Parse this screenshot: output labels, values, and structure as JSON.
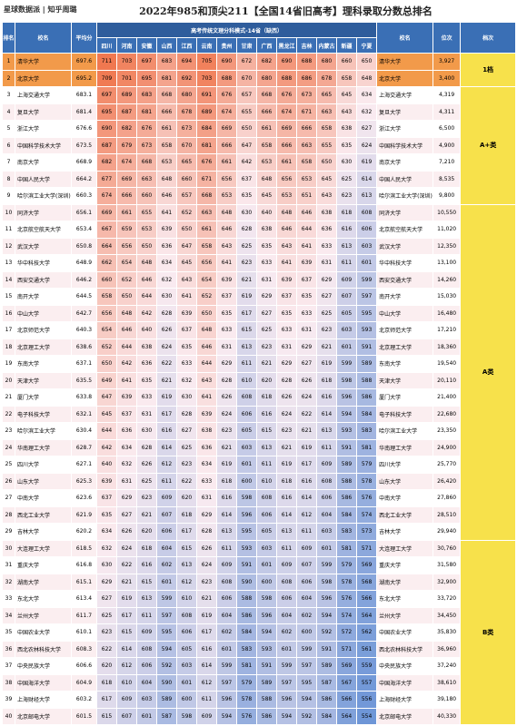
{
  "header": {
    "logo": "星球数据派 | 知乎周璐",
    "title": "2022年985和顶尖211【全国14省旧高考】理科录取分数总排名"
  },
  "table": {
    "group_title": "高考传统文理分科模式-14省（缺西）",
    "columns": {
      "rank": "排名",
      "name": "校名",
      "score": "平均分",
      "name2": "校名",
      "position": "位次",
      "tier": "档次"
    },
    "provinces": [
      "四川",
      "河南",
      "安徽",
      "山西",
      "江西",
      "云南",
      "贵州",
      "甘肃",
      "广西",
      "黑龙江",
      "吉林",
      "内蒙古",
      "新疆",
      "宁夏"
    ],
    "rows": [
      {
        "rank": 1,
        "name": "清华大学",
        "score": 697.6,
        "scores": [
          711,
          703,
          697,
          683,
          694,
          705,
          690,
          672,
          682,
          690,
          688,
          680,
          660,
          650
        ],
        "position": "3,927",
        "tier": "1档"
      },
      {
        "rank": 2,
        "name": "北京大学",
        "score": 695.2,
        "scores": [
          709,
          701,
          695,
          681,
          692,
          703,
          688,
          670,
          680,
          688,
          686,
          678,
          658,
          648
        ],
        "position": "3,400"
      },
      {
        "rank": 3,
        "name": "上海交通大学",
        "score": 683.1,
        "scores": [
          697,
          689,
          683,
          668,
          680,
          691,
          676,
          657,
          668,
          676,
          673,
          665,
          645,
          634
        ],
        "position": "4,319",
        "tier": "A+类"
      },
      {
        "rank": 4,
        "name": "复旦大学",
        "score": 681.4,
        "scores": [
          695,
          687,
          681,
          666,
          678,
          689,
          674,
          655,
          666,
          674,
          671,
          663,
          643,
          632
        ],
        "position": "4,311"
      },
      {
        "rank": 5,
        "name": "浙江大学",
        "score": 676.6,
        "scores": [
          690,
          682,
          676,
          661,
          673,
          684,
          669,
          650,
          661,
          669,
          666,
          658,
          638,
          627
        ],
        "position": "6,500"
      },
      {
        "rank": 6,
        "name": "中国科学技术大学",
        "score": 673.5,
        "scores": [
          687,
          679,
          673,
          658,
          670,
          681,
          666,
          647,
          658,
          666,
          663,
          655,
          635,
          624
        ],
        "position": "4,900"
      },
      {
        "rank": 7,
        "name": "南京大学",
        "score": 668.9,
        "scores": [
          682,
          674,
          668,
          653,
          665,
          676,
          661,
          642,
          653,
          661,
          658,
          650,
          630,
          619
        ],
        "position": "7,210"
      },
      {
        "rank": 8,
        "name": "中国人民大学",
        "score": 664.2,
        "scores": [
          677,
          669,
          663,
          648,
          660,
          671,
          656,
          637,
          648,
          656,
          653,
          645,
          625,
          614
        ],
        "position": "8,535"
      },
      {
        "rank": 9,
        "name": "哈尔滨工业大学(深圳)",
        "score": 660.3,
        "scores": [
          674,
          666,
          660,
          646,
          657,
          668,
          653,
          635,
          645,
          653,
          651,
          643,
          623,
          613
        ],
        "position": "9,800"
      },
      {
        "rank": 10,
        "name": "同济大学",
        "score": 656.1,
        "scores": [
          669,
          661,
          655,
          641,
          652,
          663,
          648,
          630,
          640,
          648,
          646,
          638,
          618,
          608
        ],
        "position": "10,550",
        "tier": "A类"
      },
      {
        "rank": 11,
        "name": "北京航空航天大学",
        "score": 653.4,
        "scores": [
          667,
          659,
          653,
          639,
          650,
          661,
          646,
          628,
          638,
          646,
          644,
          636,
          616,
          606
        ],
        "position": "11,020"
      },
      {
        "rank": 12,
        "name": "武汉大学",
        "score": 650.8,
        "scores": [
          664,
          656,
          650,
          636,
          647,
          658,
          643,
          625,
          635,
          643,
          641,
          633,
          613,
          603
        ],
        "position": "12,350"
      },
      {
        "rank": 13,
        "name": "华中科技大学",
        "score": 648.9,
        "scores": [
          662,
          654,
          648,
          634,
          645,
          656,
          641,
          623,
          633,
          641,
          639,
          631,
          611,
          601
        ],
        "position": "13,100"
      },
      {
        "rank": 14,
        "name": "西安交通大学",
        "score": 646.2,
        "scores": [
          660,
          652,
          646,
          632,
          643,
          654,
          639,
          621,
          631,
          639,
          637,
          629,
          609,
          599
        ],
        "position": "14,260"
      },
      {
        "rank": 15,
        "name": "南开大学",
        "score": 644.5,
        "scores": [
          658,
          650,
          644,
          630,
          641,
          652,
          637,
          619,
          629,
          637,
          635,
          627,
          607,
          597
        ],
        "position": "15,030"
      },
      {
        "rank": 16,
        "name": "中山大学",
        "score": 642.7,
        "scores": [
          656,
          648,
          642,
          628,
          639,
          650,
          635,
          617,
          627,
          635,
          633,
          625,
          605,
          595
        ],
        "position": "16,480"
      },
      {
        "rank": 17,
        "name": "北京师范大学",
        "score": 640.3,
        "scores": [
          654,
          646,
          640,
          626,
          637,
          648,
          633,
          615,
          625,
          633,
          631,
          623,
          603,
          593
        ],
        "position": "17,210"
      },
      {
        "rank": 18,
        "name": "北京理工大学",
        "score": 638.6,
        "scores": [
          652,
          644,
          638,
          624,
          635,
          646,
          631,
          613,
          623,
          631,
          629,
          621,
          601,
          591
        ],
        "position": "18,360"
      },
      {
        "rank": 19,
        "name": "东南大学",
        "score": 637.1,
        "scores": [
          650,
          642,
          636,
          622,
          633,
          644,
          629,
          611,
          621,
          629,
          627,
          619,
          599,
          589
        ],
        "position": "19,540"
      },
      {
        "rank": 20,
        "name": "天津大学",
        "score": 635.5,
        "scores": [
          649,
          641,
          635,
          621,
          632,
          643,
          628,
          610,
          620,
          628,
          626,
          618,
          598,
          588
        ],
        "position": "20,110"
      },
      {
        "rank": 21,
        "name": "厦门大学",
        "score": 633.8,
        "scores": [
          647,
          639,
          633,
          619,
          630,
          641,
          626,
          608,
          618,
          626,
          624,
          616,
          596,
          586
        ],
        "position": "21,400"
      },
      {
        "rank": 22,
        "name": "电子科技大学",
        "score": 632.1,
        "scores": [
          645,
          637,
          631,
          617,
          628,
          639,
          624,
          606,
          616,
          624,
          622,
          614,
          594,
          584
        ],
        "position": "22,680"
      },
      {
        "rank": 23,
        "name": "哈尔滨工业大学",
        "score": 630.4,
        "scores": [
          644,
          636,
          630,
          616,
          627,
          638,
          623,
          605,
          615,
          623,
          621,
          613,
          593,
          583
        ],
        "position": "23,350"
      },
      {
        "rank": 24,
        "name": "华南理工大学",
        "score": 628.7,
        "scores": [
          642,
          634,
          628,
          614,
          625,
          636,
          621,
          603,
          613,
          621,
          619,
          611,
          591,
          581
        ],
        "position": "24,900"
      },
      {
        "rank": 25,
        "name": "四川大学",
        "score": 627.1,
        "scores": [
          640,
          632,
          626,
          612,
          623,
          634,
          619,
          601,
          611,
          619,
          617,
          609,
          589,
          579
        ],
        "position": "25,770"
      },
      {
        "rank": 26,
        "name": "山东大学",
        "score": 625.3,
        "scores": [
          639,
          631,
          625,
          611,
          622,
          633,
          618,
          600,
          610,
          618,
          616,
          608,
          588,
          578
        ],
        "position": "26,420"
      },
      {
        "rank": 27,
        "name": "中南大学",
        "score": 623.6,
        "scores": [
          637,
          629,
          623,
          609,
          620,
          631,
          616,
          598,
          608,
          616,
          614,
          606,
          586,
          576
        ],
        "position": "27,860"
      },
      {
        "rank": 28,
        "name": "西北工业大学",
        "score": 621.9,
        "scores": [
          635,
          627,
          621,
          607,
          618,
          629,
          614,
          596,
          606,
          614,
          612,
          604,
          584,
          574
        ],
        "position": "28,510"
      },
      {
        "rank": 29,
        "name": "吉林大学",
        "score": 620.2,
        "scores": [
          634,
          626,
          620,
          606,
          617,
          628,
          613,
          595,
          605,
          613,
          611,
          603,
          583,
          573
        ],
        "position": "29,940"
      },
      {
        "rank": 30,
        "name": "大连理工大学",
        "score": 618.5,
        "scores": [
          632,
          624,
          618,
          604,
          615,
          626,
          611,
          593,
          603,
          611,
          609,
          601,
          581,
          571
        ],
        "position": "30,760",
        "tier": "B类"
      },
      {
        "rank": 31,
        "name": "重庆大学",
        "score": 616.8,
        "scores": [
          630,
          622,
          616,
          602,
          613,
          624,
          609,
          591,
          601,
          609,
          607,
          599,
          579,
          569
        ],
        "position": "31,580"
      },
      {
        "rank": 32,
        "name": "湖南大学",
        "score": 615.1,
        "scores": [
          629,
          621,
          615,
          601,
          612,
          623,
          608,
          590,
          600,
          608,
          606,
          598,
          578,
          568
        ],
        "position": "32,900"
      },
      {
        "rank": 33,
        "name": "东北大学",
        "score": 613.4,
        "scores": [
          627,
          619,
          613,
          599,
          610,
          621,
          606,
          588,
          598,
          606,
          604,
          596,
          576,
          566
        ],
        "position": "33,720"
      },
      {
        "rank": 34,
        "name": "兰州大学",
        "score": 611.7,
        "scores": [
          625,
          617,
          611,
          597,
          608,
          619,
          604,
          586,
          596,
          604,
          602,
          594,
          574,
          564
        ],
        "position": "34,450"
      },
      {
        "rank": 35,
        "name": "中国农业大学",
        "score": 610.1,
        "scores": [
          623,
          615,
          609,
          595,
          606,
          617,
          602,
          584,
          594,
          602,
          600,
          592,
          572,
          562
        ],
        "position": "35,830"
      },
      {
        "rank": 36,
        "name": "西北农林科技大学",
        "score": 608.3,
        "scores": [
          622,
          614,
          608,
          594,
          605,
          616,
          601,
          583,
          593,
          601,
          599,
          591,
          571,
          561
        ],
        "position": "36,960"
      },
      {
        "rank": 37,
        "name": "中央民族大学",
        "score": 606.6,
        "scores": [
          620,
          612,
          606,
          592,
          603,
          614,
          599,
          581,
          591,
          599,
          597,
          589,
          569,
          559
        ],
        "position": "37,240"
      },
      {
        "rank": 38,
        "name": "中国海洋大学",
        "score": 604.9,
        "scores": [
          618,
          610,
          604,
          590,
          601,
          612,
          597,
          579,
          589,
          597,
          595,
          587,
          567,
          557
        ],
        "position": "38,610"
      },
      {
        "rank": 39,
        "name": "上海财经大学",
        "score": 603.2,
        "scores": [
          617,
          609,
          603,
          589,
          600,
          611,
          596,
          578,
          588,
          596,
          594,
          586,
          566,
          556
        ],
        "position": "39,180"
      },
      {
        "rank": 40,
        "name": "北京邮电大学",
        "score": 601.5,
        "scores": [
          615,
          607,
          601,
          587,
          598,
          609,
          594,
          576,
          586,
          594,
          592,
          584,
          564,
          554
        ],
        "position": "40,330"
      }
    ]
  }
}
